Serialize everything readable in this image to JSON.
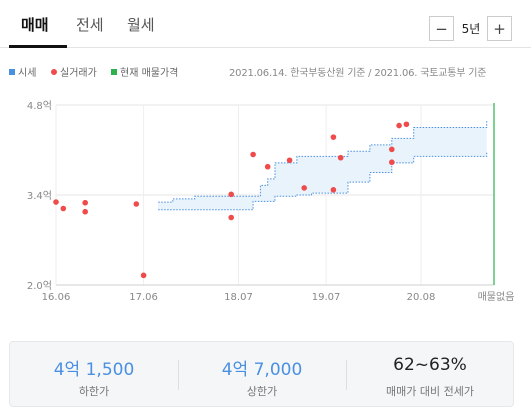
{
  "tabs": [
    {
      "label": "매매",
      "active": true
    },
    {
      "label": "전세",
      "active": false
    },
    {
      "label": "월세",
      "active": false
    }
  ],
  "period": {
    "minus": "−",
    "value": "5년",
    "plus": "+"
  },
  "legend": {
    "items": [
      {
        "label": "시세",
        "color": "#4a90e2"
      },
      {
        "label": "실거래가",
        "color": "#ef4b4b"
      },
      {
        "label": "현재 매물가격",
        "color": "#2bb24c"
      }
    ],
    "source": "2021.06.14. 한국부동산원 기준 / 2021.06. 국토교통부 기준"
  },
  "chart_data": {
    "type": "scatter",
    "y_unit": "억",
    "ylim": [
      2.0,
      4.8
    ],
    "xlim": [
      "2016-06",
      "2021-06"
    ],
    "y_ticks": [
      {
        "value": 4.8,
        "label": "4.8억"
      },
      {
        "value": 3.4,
        "label": "3.4억"
      },
      {
        "value": 2.0,
        "label": "2.0억"
      }
    ],
    "x_ticks": [
      {
        "date": "2016-06",
        "label": "16.06"
      },
      {
        "date": "2017-06",
        "label": "17.06"
      },
      {
        "date": "2018-07",
        "label": "18.07"
      },
      {
        "date": "2019-07",
        "label": "19.07"
      },
      {
        "date": "2020-08",
        "label": "20.08"
      }
    ],
    "end_label": "매물없음",
    "grid": true,
    "series": [
      {
        "name": "실거래가",
        "color": "#ef4b4b",
        "points": [
          {
            "x": "2016-06",
            "y": 3.29
          },
          {
            "x": "2016-07",
            "y": 3.19
          },
          {
            "x": "2016-10",
            "y": 3.28
          },
          {
            "x": "2016-10",
            "y": 3.14
          },
          {
            "x": "2017-05",
            "y": 3.26
          },
          {
            "x": "2017-06",
            "y": 2.15
          },
          {
            "x": "2018-06",
            "y": 3.41
          },
          {
            "x": "2018-06",
            "y": 3.05
          },
          {
            "x": "2018-09",
            "y": 4.03
          },
          {
            "x": "2018-11",
            "y": 3.84
          },
          {
            "x": "2019-02",
            "y": 3.94
          },
          {
            "x": "2019-04",
            "y": 3.51
          },
          {
            "x": "2019-08",
            "y": 4.3
          },
          {
            "x": "2019-08",
            "y": 3.48
          },
          {
            "x": "2019-09",
            "y": 3.98
          },
          {
            "x": "2020-04",
            "y": 4.11
          },
          {
            "x": "2020-04",
            "y": 3.91
          },
          {
            "x": "2020-05",
            "y": 4.48
          },
          {
            "x": "2020-06",
            "y": 4.5
          }
        ]
      },
      {
        "name": "시세",
        "color": "#4a90e2",
        "band": [
          {
            "x": "2017-08",
            "low": 3.17,
            "high": 3.29
          },
          {
            "x": "2017-10",
            "low": 3.17,
            "high": 3.34
          },
          {
            "x": "2018-01",
            "low": 3.17,
            "high": 3.38
          },
          {
            "x": "2018-04",
            "low": 3.17,
            "high": 3.38
          },
          {
            "x": "2018-08",
            "low": 3.17,
            "high": 3.38
          },
          {
            "x": "2018-09",
            "low": 3.3,
            "high": 3.38
          },
          {
            "x": "2018-10",
            "low": 3.3,
            "high": 3.55
          },
          {
            "x": "2018-11",
            "low": 3.3,
            "high": 3.65
          },
          {
            "x": "2018-12",
            "low": 3.38,
            "high": 3.9
          },
          {
            "x": "2019-03",
            "low": 3.4,
            "high": 4.0
          },
          {
            "x": "2019-05",
            "low": 3.43,
            "high": 4.0
          },
          {
            "x": "2019-08",
            "low": 3.43,
            "high": 4.0
          },
          {
            "x": "2019-10",
            "low": 3.6,
            "high": 4.08
          },
          {
            "x": "2020-01",
            "low": 3.75,
            "high": 4.18
          },
          {
            "x": "2020-04",
            "low": 3.9,
            "high": 4.28
          },
          {
            "x": "2020-07",
            "low": 4.0,
            "high": 4.45
          },
          {
            "x": "2021-03",
            "low": 4.0,
            "high": 4.45
          },
          {
            "x": "2021-05",
            "low": 4.08,
            "high": 4.55
          }
        ]
      },
      {
        "name": "현재 매물가격",
        "color": "#2bb24c",
        "marker_x": "2021-06"
      }
    ]
  },
  "summary": [
    {
      "value": "4억 1,500",
      "label": "하한가",
      "highlight": true
    },
    {
      "value": "4억 7,000",
      "label": "상한가",
      "highlight": true
    },
    {
      "value": "62~63%",
      "label": "매매가 대비 전세가",
      "highlight": false
    }
  ]
}
